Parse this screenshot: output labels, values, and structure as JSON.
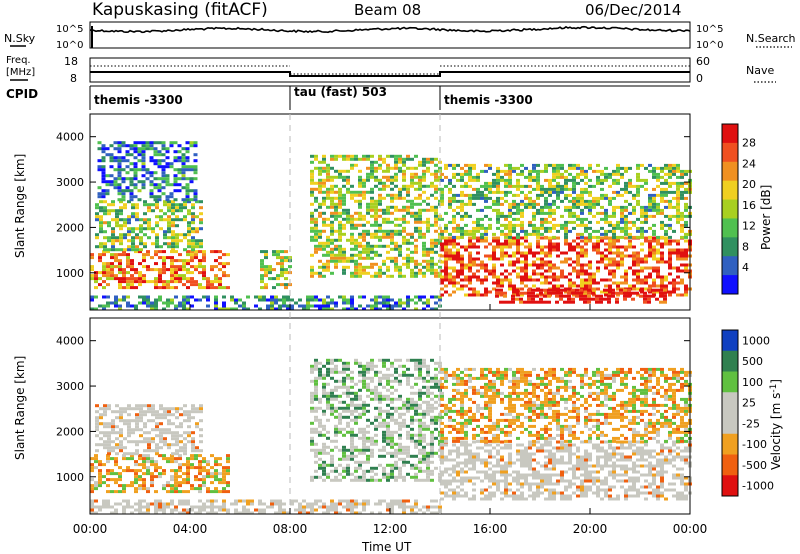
{
  "header": {
    "station": "Kapuskasing (fitACF)",
    "beam": "Beam 08",
    "date": "06/Dec/2014"
  },
  "noise_panel": {
    "left_label": "N.Sky",
    "right_label": "N.Search",
    "ticks": [
      "10^5",
      "10^0"
    ],
    "right_ticks": [
      "10^5",
      "10^0"
    ]
  },
  "freq_panel": {
    "left_label_1": "Freq.",
    "left_label_2": "[MHz]",
    "right_label": "Nave",
    "left_ticks": [
      "18",
      "8"
    ],
    "right_ticks": [
      "60",
      "0"
    ]
  },
  "cpid": {
    "label": "CPID",
    "modes": [
      {
        "name": "themis -3300",
        "start_hour": 0
      },
      {
        "name": "tau (fast) 503",
        "start_hour": 8
      },
      {
        "name": "themis -3300",
        "start_hour": 14
      }
    ]
  },
  "chart_data": [
    {
      "type": "heatmap",
      "title": "",
      "xlabel": "",
      "ylabel": "Slant Range [km]",
      "xlim": [
        0,
        24
      ],
      "ylim": [
        180,
        4500
      ],
      "yticks": [
        1000,
        2000,
        3000,
        4000
      ],
      "colorbar": {
        "label": "Power [dB]",
        "ticks": [
          "28",
          "24",
          "20",
          "16",
          "12",
          "8",
          "4"
        ],
        "range": [
          0,
          30
        ],
        "colors": [
          "#1010ff",
          "#3060c0",
          "#309060",
          "#50c050",
          "#a8d020",
          "#f0d020",
          "#f09020",
          "#f05020",
          "#e01010"
        ]
      },
      "echo_regions": [
        {
          "t0": 0.0,
          "t1": 5.6,
          "r0": 700,
          "r1": 1500,
          "level": 0.75
        },
        {
          "t0": 0.2,
          "t1": 4.5,
          "r0": 1500,
          "r1": 2600,
          "level": 0.45
        },
        {
          "t0": 0.3,
          "t1": 4.2,
          "r0": 2600,
          "r1": 3900,
          "level": 0.2
        },
        {
          "t0": 0.0,
          "t1": 14.0,
          "r0": 200,
          "r1": 500,
          "level": 0.25
        },
        {
          "t0": 6.8,
          "t1": 8.0,
          "r0": 700,
          "r1": 1500,
          "level": 0.5
        },
        {
          "t0": 8.8,
          "t1": 14.0,
          "r0": 900,
          "r1": 3600,
          "level": 0.5
        },
        {
          "t0": 14.0,
          "t1": 24.0,
          "r0": 500,
          "r1": 1800,
          "level": 0.85
        },
        {
          "t0": 14.0,
          "t1": 24.0,
          "r0": 1800,
          "r1": 3400,
          "level": 0.45
        },
        {
          "t0": 16.2,
          "t1": 23.0,
          "r0": 350,
          "r1": 650,
          "level": 1.0
        }
      ]
    },
    {
      "type": "heatmap",
      "title": "",
      "xlabel": "Time UT",
      "ylabel": "Slant Range [km]",
      "xlim": [
        0,
        24
      ],
      "ylim": [
        180,
        4500
      ],
      "xticks": [
        "00:00",
        "04:00",
        "08:00",
        "12:00",
        "16:00",
        "20:00",
        "00:00"
      ],
      "yticks": [
        1000,
        2000,
        3000,
        4000
      ],
      "colorbar": {
        "label": "Velocity [m s^-1]",
        "ticks": [
          "1000",
          "500",
          "100",
          "25",
          "-25",
          "-100",
          "-500",
          "-1000"
        ],
        "colors": [
          "#1040c0",
          "#308050",
          "#60c040",
          "#c8c8c0",
          "#c8c8c0",
          "#f0a020",
          "#f06010",
          "#e01010"
        ]
      },
      "echo_regions": [
        {
          "t0": 0.0,
          "t1": 5.6,
          "r0": 700,
          "r1": 1500,
          "kind": "mixed-orange"
        },
        {
          "t0": 0.2,
          "t1": 4.5,
          "r0": 1500,
          "r1": 2600,
          "kind": "gray"
        },
        {
          "t0": 0.0,
          "t1": 14.0,
          "r0": 200,
          "r1": 500,
          "kind": "gray"
        },
        {
          "t0": 8.8,
          "t1": 14.0,
          "r0": 900,
          "r1": 3600,
          "kind": "gray-green"
        },
        {
          "t0": 14.0,
          "t1": 24.0,
          "r0": 500,
          "r1": 1800,
          "kind": "gray"
        },
        {
          "t0": 14.0,
          "t1": 24.0,
          "r0": 1800,
          "r1": 3400,
          "kind": "mixed-orange"
        }
      ]
    }
  ]
}
